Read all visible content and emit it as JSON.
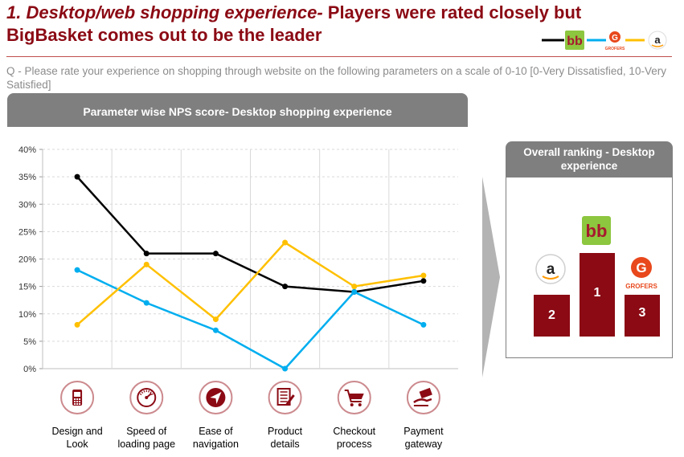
{
  "header": {
    "title_italic": "1. Desktop/web shopping experience-",
    "title_rest": " Players were rated closely but BigBasket comes out to be the leader"
  },
  "legend": {
    "grofers_logo_text": "GROFERS",
    "amazon_logo_text": "a"
  },
  "question": "Q - Please rate your experience on shopping through website on the following parameters on a scale of 0-10 [0-Very Dissatisfied, 10-Very Satisfied]",
  "chart_panel": {
    "title": "Parameter wise NPS score- Desktop shopping experience"
  },
  "chart_data": {
    "type": "line",
    "title": "Parameter wise NPS score- Desktop shopping experience",
    "categories": [
      "Design and Look",
      "Speed of loading page",
      "Ease of navigation",
      "Product details",
      "Checkout process",
      "Payment gateway"
    ],
    "category_lines": [
      [
        "Design and",
        "Look"
      ],
      [
        "Speed of",
        "loading page"
      ],
      [
        "Ease of",
        "navigation"
      ],
      [
        "Product",
        "details"
      ],
      [
        "Checkout",
        "process"
      ],
      [
        "Payment",
        "gateway"
      ]
    ],
    "icons": [
      "mobile-phone-icon",
      "speedometer-icon",
      "navigation-arrow-icon",
      "document-edit-icon",
      "shopping-cart-icon",
      "payment-hand-icon"
    ],
    "ylim": [
      0,
      40
    ],
    "yticks": [
      0,
      5,
      10,
      15,
      20,
      25,
      30,
      35,
      40
    ],
    "ytick_labels": [
      "0%",
      "5%",
      "10%",
      "15%",
      "20%",
      "25%",
      "30%",
      "35%",
      "40%"
    ],
    "series": [
      {
        "key": "bigbasket",
        "color": "#000000",
        "values": [
          35,
          21,
          21,
          15,
          14,
          16
        ]
      },
      {
        "key": "grofers",
        "color": "#00aeef",
        "values": [
          18,
          12,
          7,
          0,
          14,
          8
        ]
      },
      {
        "key": "amazon",
        "color": "#ffc000",
        "values": [
          8,
          19,
          9,
          23,
          15,
          17
        ]
      }
    ],
    "grid": true
  },
  "ranking": {
    "title": "Overall ranking - Desktop experience",
    "positions": [
      {
        "rank": "2",
        "brand": "amazon"
      },
      {
        "rank": "1",
        "brand": "bigbasket"
      },
      {
        "rank": "3",
        "brand": "grofers"
      }
    ],
    "grofers_label": "GROFERS"
  },
  "colors": {
    "brand_red": "#8b0a14",
    "panel_grey": "#7f7f7f",
    "bigbasket_green": "#8dc63f",
    "bigbasket_red": "#a6192e"
  }
}
